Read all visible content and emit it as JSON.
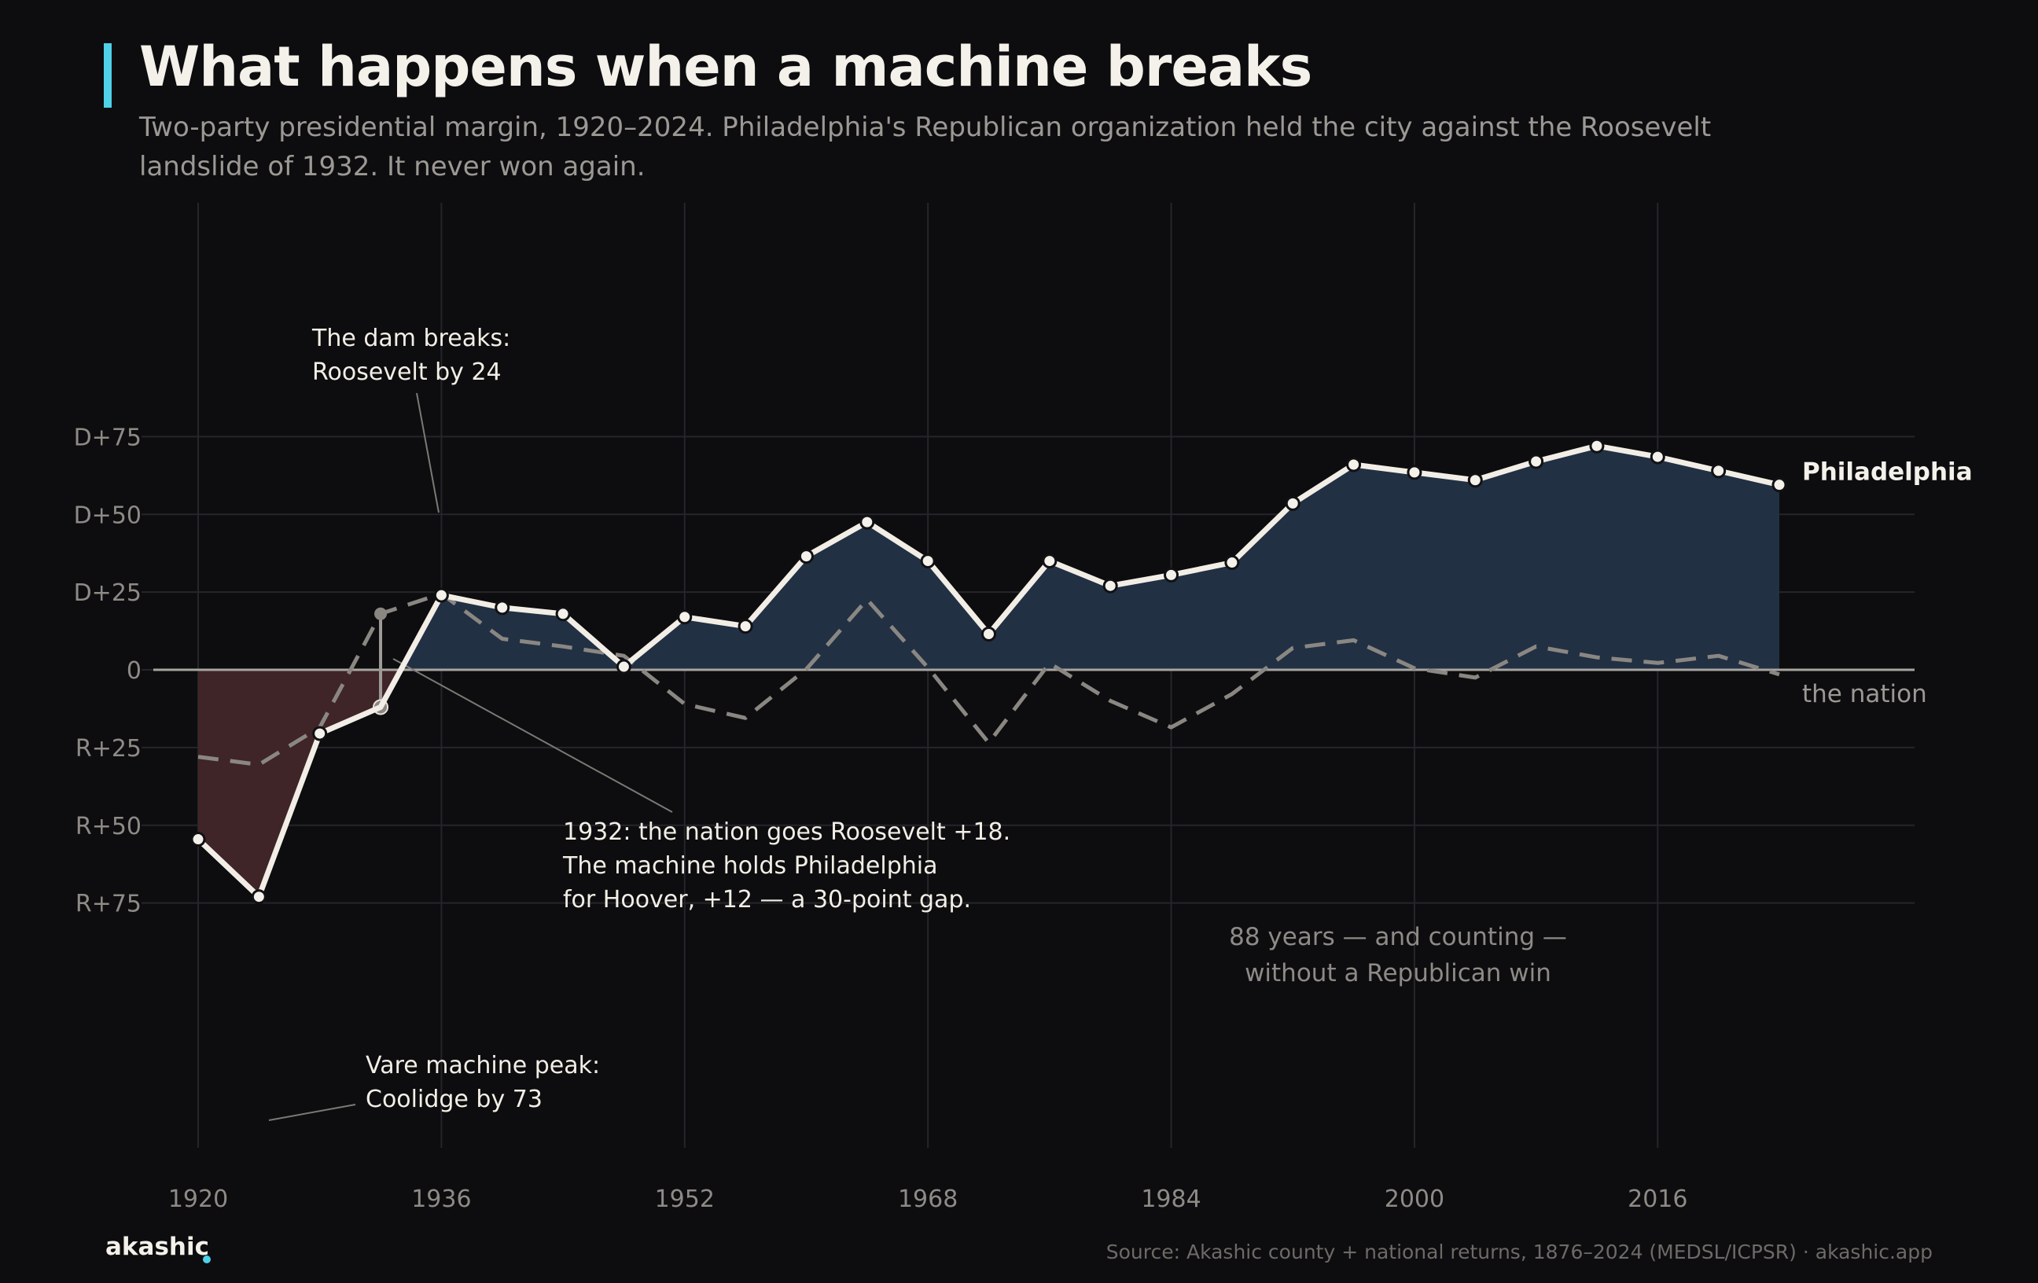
{
  "header": {
    "title": "What happens when a machine breaks",
    "subtitle": "Two-party presidential margin, 1920–2024. Philadelphia's Republican organization held the city against the Roosevelt landslide of 1932. It never won again."
  },
  "footer": {
    "logo": "akashic",
    "source": "Source: Akashic county + national returns, 1876–2024 (MEDSL/ICPSR) · akashic.app"
  },
  "colors": {
    "background": "#0d0d0f",
    "accent": "#4fd1e8",
    "philadelphia_line": "#f2eee6",
    "nation_line": "#8a8782",
    "dem_fill": "#223044",
    "rep_fill": "#3f2428",
    "grid": "#25252b",
    "zero_line": "#a8a5a0"
  },
  "chart_data": {
    "type": "line",
    "x_ticks": [
      1920,
      1936,
      1952,
      1968,
      1984,
      2000,
      2016
    ],
    "x_tick_labels": [
      "1920",
      "1936",
      "1952",
      "1968",
      "1984",
      "2000",
      "2016"
    ],
    "xlim": [
      1916,
      2030
    ],
    "y_ticks": [
      75,
      50,
      25,
      0,
      -25,
      -50,
      -75
    ],
    "y_tick_labels": [
      "D+75",
      "D+50",
      "D+25",
      "0",
      "R+25",
      "R+50",
      "R+75"
    ],
    "ylim": [
      -79,
      76
    ],
    "units": "two-party margin, points (positive = Democratic, negative = Republican)",
    "grid": true,
    "series": [
      {
        "name": "Philadelphia",
        "style": "solid",
        "x": [
          1920,
          1924,
          1928,
          1932,
          1936,
          1940,
          1944,
          1948,
          1952,
          1956,
          1960,
          1964,
          1968,
          1972,
          1976,
          1980,
          1984,
          1988,
          1992,
          1996,
          2000,
          2004,
          2008,
          2012,
          2016,
          2020,
          2024
        ],
        "y": [
          -54.5,
          -73,
          -20.5,
          -12,
          24,
          20,
          18,
          1,
          17,
          14,
          36.5,
          47.5,
          35,
          11.5,
          35,
          27,
          30.5,
          34.5,
          53.5,
          66,
          63.5,
          61,
          67,
          72,
          68.5,
          64,
          59.5
        ]
      },
      {
        "name": "the nation",
        "style": "dashed",
        "x": [
          1920,
          1924,
          1928,
          1932,
          1936,
          1940,
          1944,
          1948,
          1952,
          1956,
          1960,
          1964,
          1968,
          1972,
          1976,
          1980,
          1984,
          1988,
          1992,
          1996,
          2000,
          2004,
          2008,
          2012,
          2016,
          2020,
          2024
        ],
        "y": [
          -28,
          -30.5,
          -18.5,
          18,
          24.5,
          10,
          7.5,
          4.5,
          -11,
          -15.5,
          0.2,
          22.6,
          0.7,
          -23.5,
          2.1,
          -10,
          -18.5,
          -7.8,
          7,
          9.5,
          0.5,
          -2.5,
          7.5,
          4,
          2.2,
          4.5,
          -1.5
        ]
      }
    ],
    "labels": {
      "philadelphia": "Philadelphia",
      "nation": "the nation"
    },
    "annotations": [
      {
        "id": "dam",
        "lines": [
          "The dam breaks:",
          "Roosevelt by 24"
        ],
        "points_to_year": 1936
      },
      {
        "id": "gap",
        "lines": [
          "1932: the nation goes Roosevelt +18.",
          "The machine holds Philadelphia",
          "for Hoover, +12 — a 30-point gap."
        ],
        "points_to_year": 1932
      },
      {
        "id": "peak",
        "lines": [
          "Vare machine peak:",
          "Coolidge by 73"
        ],
        "points_to_year": 1924
      },
      {
        "id": "streak",
        "lines": [
          "88 years — and counting —",
          "without a Republican win"
        ]
      }
    ]
  }
}
